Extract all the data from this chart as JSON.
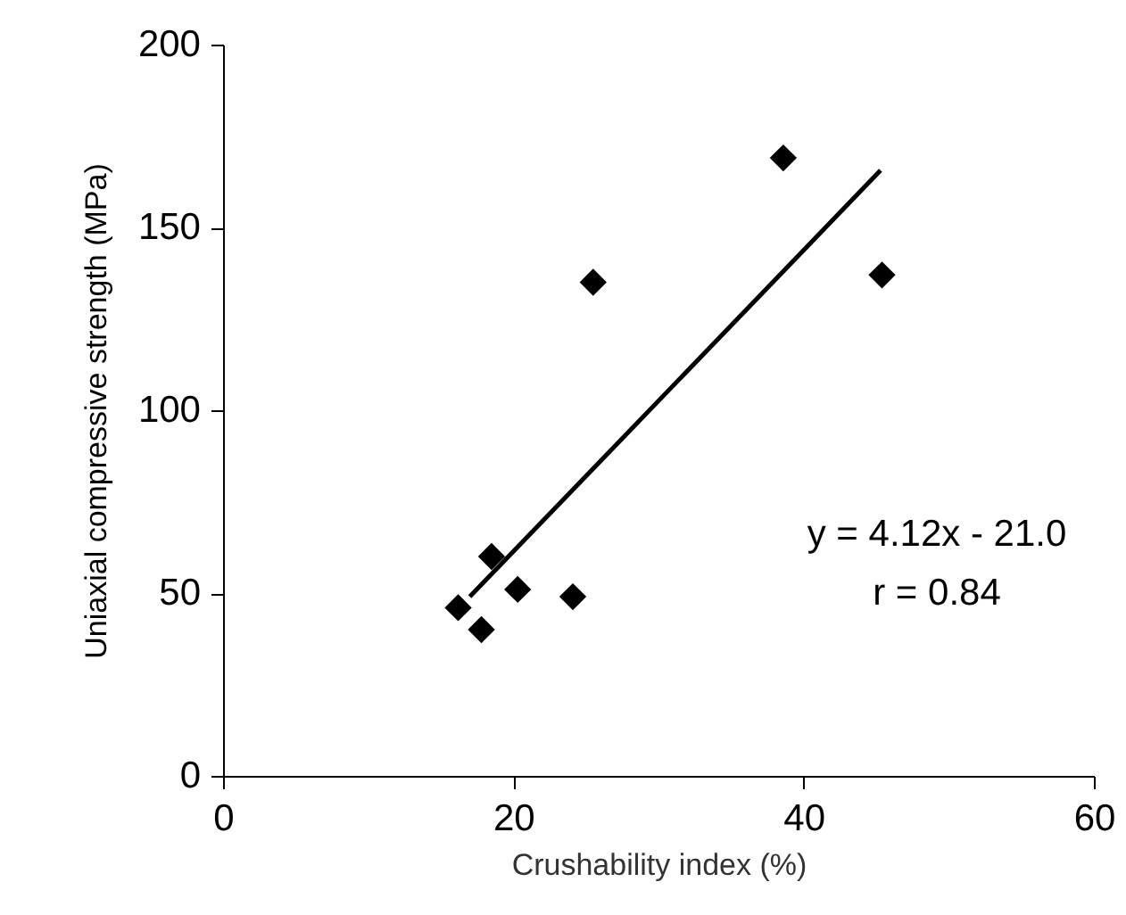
{
  "chart_data": {
    "type": "scatter",
    "xlabel": "Crushability index (%)",
    "ylabel": "Uniaxial compressive strength (MPa)",
    "xlim": [
      0,
      60
    ],
    "xticks": [
      0,
      20,
      40,
      60
    ],
    "ylim": [
      0,
      200
    ],
    "yticks": [
      0,
      50,
      100,
      150,
      200
    ],
    "grid": false,
    "series": [
      {
        "x": [
          16.2,
          17.8,
          18.5,
          20.3,
          24.1,
          25.5,
          38.6,
          45.4
        ],
        "values": [
          46,
          40,
          60,
          51,
          49,
          135,
          169,
          137
        ],
        "color": "#000000",
        "marker": "diamond"
      },
      {
        "type": "line",
        "x": [
          17,
          45.3
        ],
        "values": [
          49.0,
          165.6
        ],
        "color": "#000000",
        "line_style": "solid"
      }
    ],
    "annotations": [
      "y = 4.12x - 21.0",
      "r = 0.84"
    ]
  }
}
